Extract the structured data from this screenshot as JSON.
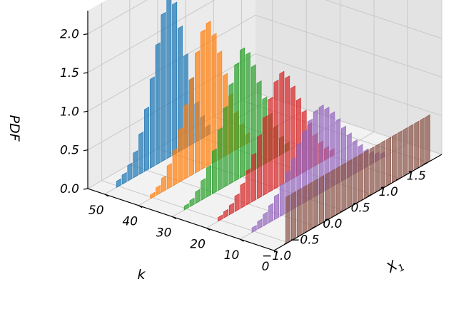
{
  "chart_data": {
    "type": "bar",
    "subtype": "3d-histogram",
    "title": "",
    "xlabel": "X",
    "xlabel_subscript": "1",
    "ylabel": "k",
    "zlabel": "PDF",
    "xlim": [
      -1.25,
      1.75
    ],
    "ylim": [
      0,
      55
    ],
    "zlim": [
      0,
      2.3
    ],
    "x_ticks": [
      -1.0,
      -0.5,
      0.0,
      0.5,
      1.0,
      1.5
    ],
    "x_tick_labels": [
      "−1.0",
      "−0.5",
      "0.0",
      "0.5",
      "1.0",
      "1.5"
    ],
    "y_ticks": [
      0,
      10,
      20,
      30,
      40,
      50
    ],
    "y_tick_labels": [
      "0",
      "10",
      "20",
      "30",
      "40",
      "50"
    ],
    "z_ticks": [
      0.0,
      0.5,
      1.0,
      1.5,
      2.0
    ],
    "z_tick_labels": [
      "0.0",
      "0.5",
      "1.0",
      "1.5",
      "2.0"
    ],
    "grid": true,
    "legend": "none",
    "series": [
      {
        "k": 50,
        "color": "#1f77b4",
        "x": [
          -1.0,
          -0.9,
          -0.8,
          -0.7,
          -0.6,
          -0.5,
          -0.4,
          -0.3,
          -0.2,
          -0.1,
          0.0,
          0.1,
          0.2,
          0.3,
          0.4,
          0.5,
          0.6
        ],
        "values": [
          0.08,
          0.12,
          0.2,
          0.32,
          0.52,
          0.8,
          1.15,
          1.55,
          1.9,
          2.2,
          1.95,
          1.6,
          1.2,
          0.85,
          0.5,
          0.28,
          0.12
        ]
      },
      {
        "k": 40,
        "color": "#ff7f0e",
        "x": [
          -1.0,
          -0.9,
          -0.8,
          -0.7,
          -0.6,
          -0.5,
          -0.4,
          -0.3,
          -0.2,
          -0.1,
          0.0,
          0.1,
          0.2,
          0.3,
          0.4,
          0.5,
          0.6,
          0.7
        ],
        "values": [
          0.05,
          0.1,
          0.18,
          0.3,
          0.45,
          0.68,
          0.95,
          1.25,
          1.55,
          1.78,
          1.85,
          1.65,
          1.38,
          1.05,
          0.75,
          0.48,
          0.28,
          0.12
        ]
      },
      {
        "k": 30,
        "color": "#2ca02c",
        "x": [
          -1.0,
          -0.9,
          -0.8,
          -0.7,
          -0.6,
          -0.5,
          -0.4,
          -0.3,
          -0.2,
          -0.1,
          0.0,
          0.1,
          0.2,
          0.3,
          0.4,
          0.5,
          0.6,
          0.7,
          0.8
        ],
        "values": [
          0.05,
          0.08,
          0.15,
          0.25,
          0.38,
          0.55,
          0.78,
          1.02,
          1.28,
          1.5,
          1.65,
          1.55,
          1.35,
          1.1,
          0.85,
          0.6,
          0.4,
          0.22,
          0.1
        ]
      },
      {
        "k": 20,
        "color": "#d62728",
        "x": [
          -1.0,
          -0.9,
          -0.8,
          -0.7,
          -0.6,
          -0.5,
          -0.4,
          -0.3,
          -0.2,
          -0.1,
          0.0,
          0.1,
          0.2,
          0.3,
          0.4,
          0.5,
          0.6,
          0.7,
          0.8,
          0.9,
          1.0
        ],
        "values": [
          0.05,
          0.08,
          0.12,
          0.2,
          0.3,
          0.44,
          0.6,
          0.8,
          1.0,
          1.2,
          1.38,
          1.45,
          1.35,
          1.18,
          0.98,
          0.78,
          0.58,
          0.4,
          0.26,
          0.15,
          0.08
        ]
      },
      {
        "k": 10,
        "color": "#9467bd",
        "x": [
          -1.0,
          -0.9,
          -0.8,
          -0.7,
          -0.6,
          -0.5,
          -0.4,
          -0.3,
          -0.2,
          -0.1,
          0.0,
          0.1,
          0.2,
          0.3,
          0.4,
          0.5,
          0.6,
          0.7,
          0.8,
          0.9,
          1.0,
          1.1,
          1.2,
          1.3
        ],
        "values": [
          0.06,
          0.1,
          0.15,
          0.22,
          0.3,
          0.4,
          0.52,
          0.65,
          0.8,
          0.92,
          1.02,
          1.1,
          1.12,
          1.05,
          0.95,
          0.82,
          0.68,
          0.55,
          0.42,
          0.32,
          0.22,
          0.15,
          0.1,
          0.06
        ]
      },
      {
        "k": 0,
        "color": "#8c564b",
        "x": [
          -1.0,
          -0.9,
          -0.8,
          -0.7,
          -0.6,
          -0.5,
          -0.4,
          -0.3,
          -0.2,
          -0.1,
          0.0,
          0.1,
          0.2,
          0.3,
          0.4,
          0.5,
          0.6,
          0.7,
          0.8,
          0.9,
          1.0,
          1.1,
          1.2,
          1.3,
          1.4,
          1.5
        ],
        "values": [
          0.6,
          0.6,
          0.6,
          0.6,
          0.6,
          0.6,
          0.6,
          0.6,
          0.6,
          0.6,
          0.6,
          0.6,
          0.6,
          0.6,
          0.6,
          0.6,
          0.6,
          0.6,
          0.6,
          0.6,
          0.6,
          0.6,
          0.6,
          0.6,
          0.6,
          0.6
        ]
      }
    ]
  }
}
